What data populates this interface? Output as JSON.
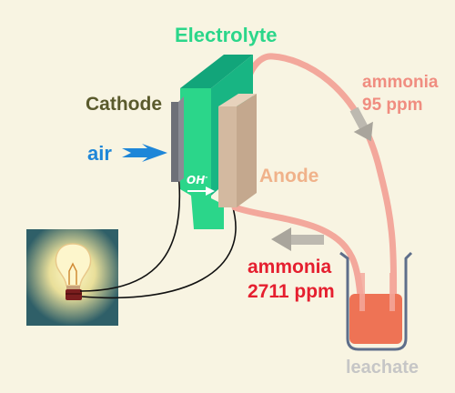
{
  "labels": {
    "electrolyte": "Electrolyte",
    "cathode": "Cathode",
    "air": "air",
    "anode": "Anode",
    "hydroxide_base": "OH",
    "hydroxide_charge": "-",
    "ammonia_top": "ammonia",
    "ammonia_top_conc": "95 ppm",
    "ammonia_bottom": "ammonia",
    "ammonia_bottom_conc": "2711 ppm",
    "leachate": "leachate"
  },
  "colors": {
    "background": "#f8f4e2",
    "electrolyte": "#2bd68a",
    "electrolyte_dark": "#12a57a",
    "cathode_plate": "#6e7078",
    "anode_plate": "#d3b9a0",
    "air_arrow": "#1e86d8",
    "tube": "#f3a89c",
    "flow_arrow": "#bdb9b0",
    "ammonia_low": "#f08d80",
    "ammonia_high": "#e51f2f",
    "leachate_liquid": "#ee7355",
    "wire": "#111111",
    "bulb_panel": "#2f5f68"
  },
  "icons": {
    "bulb": "light-bulb-icon",
    "beaker": "beaker-icon",
    "air_arrow": "air-arrow-icon"
  }
}
